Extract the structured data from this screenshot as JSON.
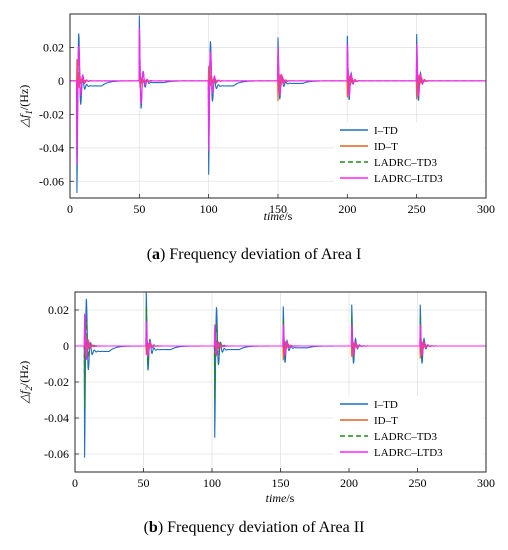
{
  "chart_data": [
    {
      "type": "line",
      "caption_letter": "a",
      "caption_text": "Frequency deviation of Area I",
      "ylabel": "△f1/(Hz)",
      "ylabel_main": "△f",
      "ylabel_sub": "1",
      "ylabel_unit": "/(Hz)",
      "xlabel_main": "time",
      "xlabel_unit": "/s",
      "xlim": [
        0,
        300
      ],
      "ylim": [
        -0.07,
        0.04
      ],
      "xticks": [
        0,
        50,
        100,
        150,
        200,
        250,
        300
      ],
      "yticks": [
        0.02,
        0,
        -0.02,
        -0.04,
        -0.06
      ],
      "ytick_labels": [
        "0.02",
        "0",
        "-0.02",
        "-0.04",
        "-0.06"
      ],
      "grid": true,
      "legend_position": "bottom-right",
      "events": [
        5,
        50,
        100,
        150,
        200,
        250
      ],
      "series": [
        {
          "name": "I–TD",
          "color": "#1f6fbf",
          "style": "solid",
          "peaks": [
            -0.067,
            0.039,
            -0.056,
            0.026,
            0.027,
            0.028
          ],
          "settle": [
            -0.003,
            -0.001,
            -0.003,
            -0.0015,
            0.0,
            0.0
          ]
        },
        {
          "name": "ID–T",
          "color": "#e2621e",
          "style": "solid",
          "peaks": [
            0.013,
            0.006,
            0.009,
            -0.012,
            -0.01,
            -0.011
          ],
          "settle": [
            0,
            0,
            0,
            0,
            0,
            0
          ]
        },
        {
          "name": "LADRC–TD3",
          "color": "#1e8c1e",
          "style": "dashed",
          "peaks": [
            -0.046,
            0.03,
            -0.04,
            0.018,
            0.02,
            0.02
          ],
          "settle": [
            0,
            0,
            0,
            0,
            0,
            0
          ]
        },
        {
          "name": "LADRC–LTD3",
          "color": "#ff22ff",
          "style": "solid",
          "peaks": [
            -0.05,
            0.032,
            -0.042,
            0.02,
            0.022,
            0.022
          ],
          "settle": [
            0,
            0,
            0,
            0,
            0,
            0
          ]
        }
      ]
    },
    {
      "type": "line",
      "caption_letter": "b",
      "caption_text": "Frequency deviation of Area II",
      "ylabel": "△f2/(Hz)",
      "ylabel_main": "△f",
      "ylabel_sub": "2",
      "ylabel_unit": "/(Hz)",
      "xlabel_main": "time",
      "xlabel_unit": "/s",
      "xlim": [
        0,
        300
      ],
      "ylim": [
        -0.07,
        0.03
      ],
      "xticks": [
        0,
        50,
        100,
        150,
        200,
        250,
        300
      ],
      "yticks": [
        0.02,
        0,
        -0.02,
        -0.04,
        -0.06
      ],
      "ytick_labels": [
        "0.02",
        "0",
        "-0.02",
        "-0.04",
        "-0.06"
      ],
      "grid": true,
      "legend_position": "bottom-right",
      "events": [
        7,
        52,
        102,
        152,
        202,
        252
      ],
      "series": [
        {
          "name": "I–TD",
          "color": "#1f6fbf",
          "style": "solid",
          "peaks": [
            -0.062,
            0.032,
            -0.051,
            0.022,
            0.023,
            0.023
          ],
          "settle": [
            -0.003,
            -0.002,
            -0.002,
            -0.001,
            0.0,
            0.0
          ]
        },
        {
          "name": "ID–T",
          "color": "#e2621e",
          "style": "solid",
          "peaks": [
            0.012,
            -0.005,
            0.008,
            -0.008,
            -0.006,
            -0.007
          ],
          "settle": [
            0,
            0,
            0,
            0,
            0,
            0
          ]
        },
        {
          "name": "LADRC–TD3",
          "color": "#1e8c1e",
          "style": "dashed",
          "peaks": [
            -0.035,
            0.022,
            -0.03,
            0.015,
            0.016,
            0.016
          ],
          "settle": [
            0,
            0,
            0,
            0,
            0,
            0
          ]
        },
        {
          "name": "LADRC–LTD3",
          "color": "#ff22ff",
          "style": "solid",
          "peaks": [
            0.018,
            0.014,
            0.012,
            0.012,
            0.012,
            0.012
          ],
          "settle": [
            0,
            0,
            0,
            0,
            0,
            0
          ]
        }
      ]
    }
  ]
}
